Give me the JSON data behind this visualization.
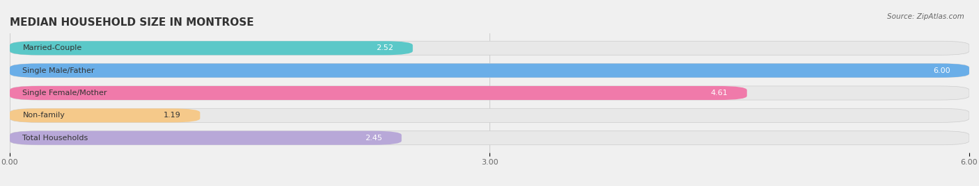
{
  "title": "MEDIAN HOUSEHOLD SIZE IN MONTROSE",
  "source": "Source: ZipAtlas.com",
  "categories": [
    "Married-Couple",
    "Single Male/Father",
    "Single Female/Mother",
    "Non-family",
    "Total Households"
  ],
  "values": [
    2.52,
    6.0,
    4.61,
    1.19,
    2.45
  ],
  "bar_colors": [
    "#5bc8c8",
    "#6aaee8",
    "#f07aaa",
    "#f5c98a",
    "#b8a8d8"
  ],
  "background_color": "#f0f0f0",
  "bar_bg_color": "#e8e8e8",
  "xlim": [
    0,
    6.0
  ],
  "xticks": [
    0.0,
    3.0,
    6.0
  ],
  "xtick_labels": [
    "0.00",
    "3.00",
    "6.00"
  ],
  "title_fontsize": 11,
  "label_fontsize": 8,
  "value_fontsize": 8
}
